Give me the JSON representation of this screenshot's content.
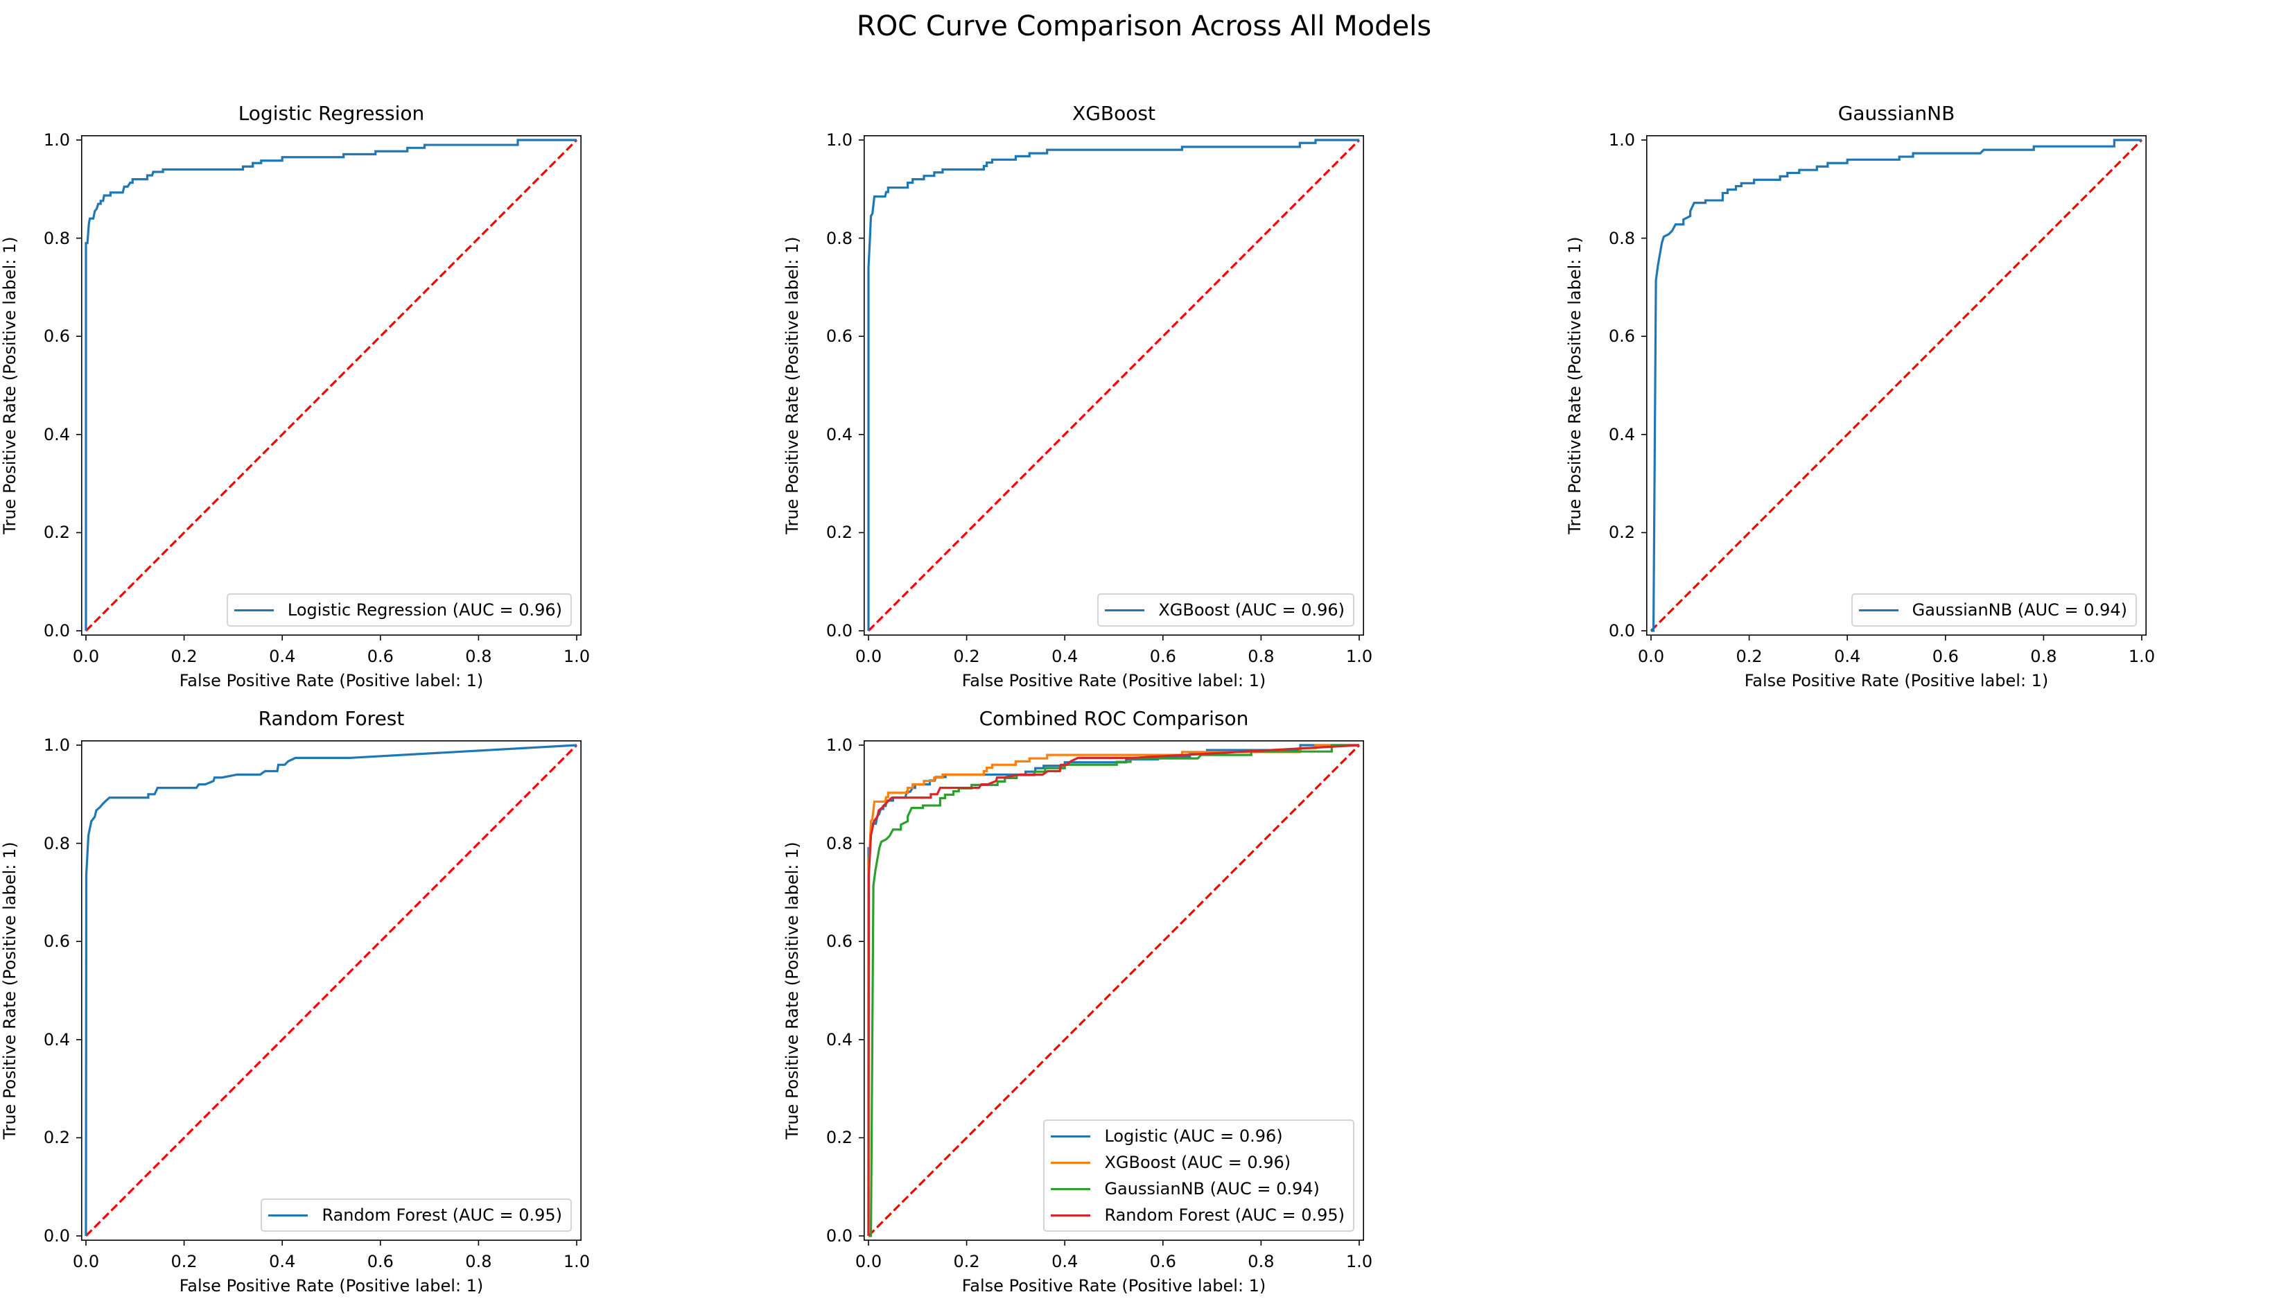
{
  "figure": {
    "title": "ROC Curve Comparison Across All Models"
  },
  "colors": {
    "blue": "#1f77b4",
    "orange": "#ff7f0e",
    "green": "#2ca02c",
    "red": "#d62728",
    "chance_line": "#ff0000"
  },
  "chart_data": [
    {
      "type": "line",
      "title": "Logistic Regression",
      "xlabel": "False Positive Rate (Positive label: 1)",
      "ylabel": "True Positive Rate (Positive label: 1)",
      "xlim": [
        0,
        1
      ],
      "ylim": [
        0,
        1
      ],
      "xticks": [
        "0.0",
        "0.2",
        "0.4",
        "0.6",
        "0.8",
        "1.0"
      ],
      "yticks": [
        "0.0",
        "0.2",
        "0.4",
        "0.6",
        "0.8",
        "1.0"
      ],
      "grid": false,
      "legend_position": "lower right",
      "reference_line": {
        "style": "dashed",
        "color": "#ff0000",
        "points": [
          [
            0,
            0
          ],
          [
            1,
            1
          ]
        ]
      },
      "series": [
        {
          "name": "Logistic Regression (AUC = 0.96)",
          "color": "#1f77b4",
          "points": "logistic"
        }
      ]
    },
    {
      "type": "line",
      "title": "XGBoost",
      "xlabel": "False Positive Rate (Positive label: 1)",
      "ylabel": "True Positive Rate (Positive label: 1)",
      "xlim": [
        0,
        1
      ],
      "ylim": [
        0,
        1
      ],
      "xticks": [
        "0.0",
        "0.2",
        "0.4",
        "0.6",
        "0.8",
        "1.0"
      ],
      "yticks": [
        "0.0",
        "0.2",
        "0.4",
        "0.6",
        "0.8",
        "1.0"
      ],
      "grid": false,
      "legend_position": "lower right",
      "reference_line": {
        "style": "dashed",
        "color": "#ff0000",
        "points": [
          [
            0,
            0
          ],
          [
            1,
            1
          ]
        ]
      },
      "series": [
        {
          "name": "XGBoost (AUC = 0.96)",
          "color": "#1f77b4",
          "points": "xgboost"
        }
      ]
    },
    {
      "type": "line",
      "title": "GaussianNB",
      "xlabel": "False Positive Rate (Positive label: 1)",
      "ylabel": "True Positive Rate (Positive label: 1)",
      "xlim": [
        0,
        1
      ],
      "ylim": [
        0,
        1
      ],
      "xticks": [
        "0.0",
        "0.2",
        "0.4",
        "0.6",
        "0.8",
        "1.0"
      ],
      "yticks": [
        "0.0",
        "0.2",
        "0.4",
        "0.6",
        "0.8",
        "1.0"
      ],
      "grid": false,
      "legend_position": "lower right",
      "reference_line": {
        "style": "dashed",
        "color": "#ff0000",
        "points": [
          [
            0,
            0
          ],
          [
            1,
            1
          ]
        ]
      },
      "series": [
        {
          "name": "GaussianNB (AUC = 0.94)",
          "color": "#1f77b4",
          "points": "gaussiannb"
        }
      ]
    },
    {
      "type": "line",
      "title": "Random Forest",
      "xlabel": "False Positive Rate (Positive label: 1)",
      "ylabel": "True Positive Rate (Positive label: 1)",
      "xlim": [
        0,
        1
      ],
      "ylim": [
        0,
        1
      ],
      "xticks": [
        "0.0",
        "0.2",
        "0.4",
        "0.6",
        "0.8",
        "1.0"
      ],
      "yticks": [
        "0.0",
        "0.2",
        "0.4",
        "0.6",
        "0.8",
        "1.0"
      ],
      "grid": false,
      "legend_position": "lower right",
      "reference_line": {
        "style": "dashed",
        "color": "#ff0000",
        "points": [
          [
            0,
            0
          ],
          [
            1,
            1
          ]
        ]
      },
      "series": [
        {
          "name": "Random Forest (AUC = 0.95)",
          "color": "#1f77b4",
          "points": "randomforest"
        }
      ]
    },
    {
      "type": "line",
      "title": "Combined ROC Comparison",
      "xlabel": "False Positive Rate (Positive label: 1)",
      "ylabel": "True Positive Rate (Positive label: 1)",
      "xlim": [
        0,
        1
      ],
      "ylim": [
        0,
        1
      ],
      "xticks": [
        "0.0",
        "0.2",
        "0.4",
        "0.6",
        "0.8",
        "1.0"
      ],
      "yticks": [
        "0.0",
        "0.2",
        "0.4",
        "0.6",
        "0.8",
        "1.0"
      ],
      "grid": false,
      "legend_position": "lower right",
      "reference_line": {
        "style": "dashed",
        "color": "#ff0000",
        "points": [
          [
            0,
            0
          ],
          [
            1,
            1
          ]
        ]
      },
      "series": [
        {
          "name": "Logistic (AUC = 0.96)",
          "color": "#1f77b4",
          "points": "logistic"
        },
        {
          "name": "XGBoost (AUC = 0.96)",
          "color": "#ff7f0e",
          "points": "xgboost"
        },
        {
          "name": "GaussianNB (AUC = 0.94)",
          "color": "#2ca02c",
          "points": "gaussiannb"
        },
        {
          "name": "Random Forest (AUC = 0.95)",
          "color": "#d62728",
          "points": "randomforest"
        }
      ]
    }
  ],
  "roc_points": {
    "logistic": [
      [
        0,
        0
      ],
      [
        0,
        0.79
      ],
      [
        0.003,
        0.79
      ],
      [
        0.006,
        0.83
      ],
      [
        0.008,
        0.84
      ],
      [
        0.015,
        0.84
      ],
      [
        0.018,
        0.855
      ],
      [
        0.022,
        0.86
      ],
      [
        0.025,
        0.87
      ],
      [
        0.03,
        0.87
      ],
      [
        0.03,
        0.876
      ],
      [
        0.035,
        0.876
      ],
      [
        0.037,
        0.887
      ],
      [
        0.05,
        0.887
      ],
      [
        0.05,
        0.893
      ],
      [
        0.075,
        0.893
      ],
      [
        0.078,
        0.905
      ],
      [
        0.085,
        0.905
      ],
      [
        0.09,
        0.913
      ],
      [
        0.095,
        0.913
      ],
      [
        0.095,
        0.92
      ],
      [
        0.125,
        0.92
      ],
      [
        0.125,
        0.928
      ],
      [
        0.135,
        0.928
      ],
      [
        0.137,
        0.935
      ],
      [
        0.157,
        0.935
      ],
      [
        0.157,
        0.94
      ],
      [
        0.32,
        0.94
      ],
      [
        0.32,
        0.946
      ],
      [
        0.34,
        0.946
      ],
      [
        0.34,
        0.953
      ],
      [
        0.357,
        0.953
      ],
      [
        0.357,
        0.958
      ],
      [
        0.4,
        0.958
      ],
      [
        0.4,
        0.965
      ],
      [
        0.525,
        0.965
      ],
      [
        0.525,
        0.971
      ],
      [
        0.59,
        0.971
      ],
      [
        0.59,
        0.977
      ],
      [
        0.655,
        0.977
      ],
      [
        0.655,
        0.984
      ],
      [
        0.69,
        0.984
      ],
      [
        0.69,
        0.99
      ],
      [
        0.88,
        0.99
      ],
      [
        0.88,
        1
      ],
      [
        1,
        1
      ]
    ],
    "xgboost": [
      [
        0,
        0
      ],
      [
        0,
        0.74
      ],
      [
        0.003,
        0.8
      ],
      [
        0.005,
        0.845
      ],
      [
        0.008,
        0.85
      ],
      [
        0.012,
        0.885
      ],
      [
        0.034,
        0.885
      ],
      [
        0.036,
        0.894
      ],
      [
        0.04,
        0.894
      ],
      [
        0.04,
        0.903
      ],
      [
        0.08,
        0.903
      ],
      [
        0.08,
        0.913
      ],
      [
        0.09,
        0.913
      ],
      [
        0.09,
        0.92
      ],
      [
        0.113,
        0.92
      ],
      [
        0.113,
        0.927
      ],
      [
        0.134,
        0.927
      ],
      [
        0.134,
        0.934
      ],
      [
        0.151,
        0.934
      ],
      [
        0.151,
        0.94
      ],
      [
        0.235,
        0.94
      ],
      [
        0.235,
        0.947
      ],
      [
        0.241,
        0.947
      ],
      [
        0.241,
        0.954
      ],
      [
        0.252,
        0.954
      ],
      [
        0.252,
        0.96
      ],
      [
        0.3,
        0.96
      ],
      [
        0.3,
        0.967
      ],
      [
        0.328,
        0.967
      ],
      [
        0.328,
        0.973
      ],
      [
        0.364,
        0.973
      ],
      [
        0.364,
        0.98
      ],
      [
        0.639,
        0.98
      ],
      [
        0.639,
        0.986
      ],
      [
        0.879,
        0.986
      ],
      [
        0.879,
        0.994
      ],
      [
        0.911,
        0.994
      ],
      [
        0.911,
        1
      ],
      [
        1,
        1
      ]
    ],
    "gaussiannb": [
      [
        0,
        0
      ],
      [
        0.005,
        0
      ],
      [
        0.01,
        0.714
      ],
      [
        0.014,
        0.744
      ],
      [
        0.022,
        0.79
      ],
      [
        0.026,
        0.803
      ],
      [
        0.036,
        0.808
      ],
      [
        0.043,
        0.815
      ],
      [
        0.05,
        0.828
      ],
      [
        0.066,
        0.828
      ],
      [
        0.066,
        0.838
      ],
      [
        0.08,
        0.845
      ],
      [
        0.08,
        0.855
      ],
      [
        0.088,
        0.872
      ],
      [
        0.111,
        0.872
      ],
      [
        0.111,
        0.877
      ],
      [
        0.146,
        0.877
      ],
      [
        0.146,
        0.892
      ],
      [
        0.156,
        0.892
      ],
      [
        0.156,
        0.899
      ],
      [
        0.173,
        0.899
      ],
      [
        0.173,
        0.906
      ],
      [
        0.184,
        0.906
      ],
      [
        0.184,
        0.912
      ],
      [
        0.21,
        0.912
      ],
      [
        0.21,
        0.919
      ],
      [
        0.263,
        0.919
      ],
      [
        0.263,
        0.926
      ],
      [
        0.278,
        0.926
      ],
      [
        0.278,
        0.933
      ],
      [
        0.302,
        0.933
      ],
      [
        0.302,
        0.939
      ],
      [
        0.338,
        0.939
      ],
      [
        0.338,
        0.946
      ],
      [
        0.36,
        0.946
      ],
      [
        0.36,
        0.953
      ],
      [
        0.4,
        0.953
      ],
      [
        0.4,
        0.96
      ],
      [
        0.506,
        0.96
      ],
      [
        0.506,
        0.966
      ],
      [
        0.534,
        0.966
      ],
      [
        0.534,
        0.973
      ],
      [
        0.671,
        0.973
      ],
      [
        0.678,
        0.98
      ],
      [
        0.78,
        0.98
      ],
      [
        0.78,
        0.987
      ],
      [
        0.944,
        0.987
      ],
      [
        0.944,
        1
      ],
      [
        1,
        1
      ]
    ],
    "randomforest": [
      [
        0,
        0
      ],
      [
        0.0007,
        0.736
      ],
      [
        0.005,
        0.816
      ],
      [
        0.011,
        0.845
      ],
      [
        0.018,
        0.854
      ],
      [
        0.021,
        0.867
      ],
      [
        0.028,
        0.873
      ],
      [
        0.034,
        0.88
      ],
      [
        0.041,
        0.887
      ],
      [
        0.048,
        0.893
      ],
      [
        0.127,
        0.893
      ],
      [
        0.127,
        0.9
      ],
      [
        0.14,
        0.9
      ],
      [
        0.146,
        0.913
      ],
      [
        0.225,
        0.913
      ],
      [
        0.23,
        0.92
      ],
      [
        0.243,
        0.92
      ],
      [
        0.26,
        0.927
      ],
      [
        0.262,
        0.934
      ],
      [
        0.277,
        0.934
      ],
      [
        0.308,
        0.94
      ],
      [
        0.355,
        0.94
      ],
      [
        0.365,
        0.947
      ],
      [
        0.39,
        0.947
      ],
      [
        0.392,
        0.96
      ],
      [
        0.405,
        0.96
      ],
      [
        0.412,
        0.967
      ],
      [
        0.427,
        0.974
      ],
      [
        0.537,
        0.974
      ],
      [
        1,
        1
      ]
    ]
  }
}
